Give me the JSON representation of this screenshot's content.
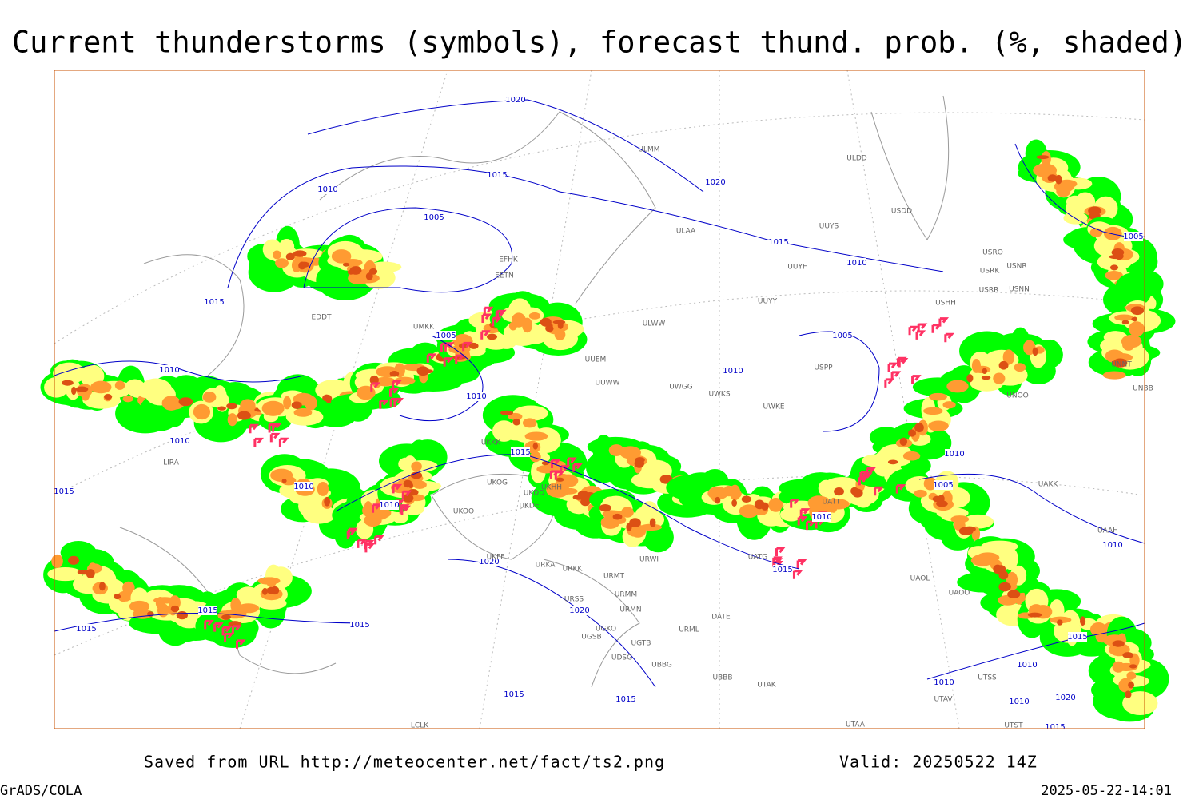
{
  "header": {
    "title": "Current thunderstorms (symbols), forecast thund. prob. (%, shaded)"
  },
  "map": {
    "isobar_labels": [
      "1020",
      "1015",
      "1020",
      "1010",
      "1005",
      "1015",
      "1010",
      "1015",
      "1005",
      "1005",
      "1010",
      "1010",
      "1010",
      "1010",
      "1015",
      "1010",
      "1010",
      "1015",
      "1005",
      "1010",
      "1010",
      "1020",
      "1015",
      "1020",
      "1015",
      "1015",
      "1015",
      "1015",
      "1010",
      "1010",
      "1015",
      "1015",
      "1010",
      "1020",
      "1005",
      "1010",
      "1015"
    ],
    "stations": [
      "ULMM",
      "ULDD",
      "USDD",
      "ULAA",
      "UUYS",
      "USRO",
      "USRK",
      "USNR",
      "USRR",
      "USNN",
      "UUYH",
      "EFHK",
      "EETN",
      "UUYY",
      "ULWW",
      "USHH",
      "UUEM",
      "UUWW",
      "UWGG",
      "UWKS",
      "UWKE",
      "USPP",
      "UNOO",
      "UNBB",
      "UNNT",
      "EDDT",
      "UMKK",
      "LIRA",
      "UKKK",
      "UKFF",
      "URKA",
      "URKK",
      "URMT",
      "URSS",
      "URMM",
      "URMN",
      "UGKO",
      "UGSB",
      "UGTB",
      "UDSG",
      "UBBG",
      "UBBB",
      "DATE",
      "UATT",
      "UATG",
      "UAOL",
      "UAOO",
      "UAAH",
      "UAKK",
      "UTAK",
      "UTAV",
      "UTST",
      "UTAA",
      "UTSS",
      "URWI",
      "UKOO",
      "UKDD",
      "UKDE",
      "UKHH",
      "UKOG",
      "LCLK",
      "URML"
    ]
  },
  "footer": {
    "saved": "Saved from URL http://meteocenter.net/fact/ts2.png",
    "valid": "Valid: 20250522 14Z",
    "software": "GrADS/COLA",
    "timestamp": "2025-05-22-14:01"
  }
}
